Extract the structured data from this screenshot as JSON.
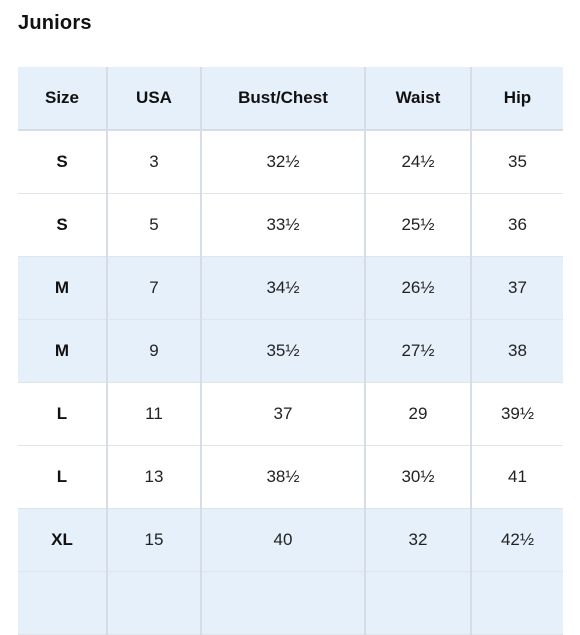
{
  "title": "Juniors",
  "headers": [
    "Size",
    "USA",
    "Bust/Chest",
    "Waist",
    "Hip"
  ],
  "rows": [
    {
      "size": "S",
      "usa": "3",
      "bust": "32½",
      "waist": "24½",
      "hip": "35",
      "shade": false
    },
    {
      "size": "S",
      "usa": "5",
      "bust": "33½",
      "waist": "25½",
      "hip": "36",
      "shade": false
    },
    {
      "size": "M",
      "usa": "7",
      "bust": "34½",
      "waist": "26½",
      "hip": "37",
      "shade": true
    },
    {
      "size": "M",
      "usa": "9",
      "bust": "35½",
      "waist": "27½",
      "hip": "38",
      "shade": true
    },
    {
      "size": "L",
      "usa": "11",
      "bust": "37",
      "waist": "29",
      "hip": "39½",
      "shade": false
    },
    {
      "size": "L",
      "usa": "13",
      "bust": "38½",
      "waist": "30½",
      "hip": "41",
      "shade": false
    },
    {
      "size": "XL",
      "usa": "15",
      "bust": "40",
      "waist": "32",
      "hip": "42½",
      "shade": true
    },
    {
      "size": "",
      "usa": "",
      "bust": "",
      "waist": "",
      "hip": "",
      "shade": true
    }
  ],
  "colors": {
    "header_bg": "#e6f0fb",
    "shade_bg": "#e6f0fb",
    "grid_line": "#d6dde6"
  }
}
